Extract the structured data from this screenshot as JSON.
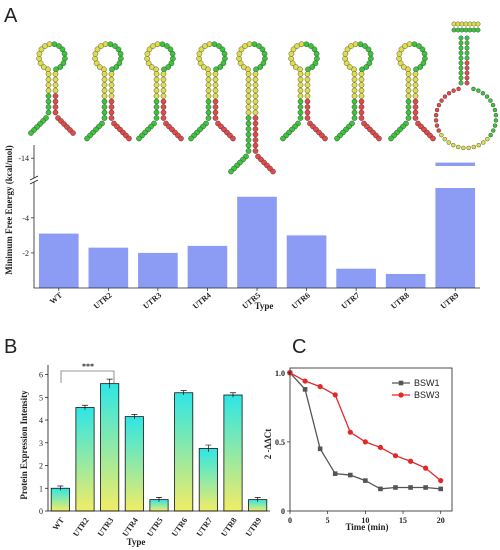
{
  "panel_a": {
    "letter": "A",
    "rna_structures": [
      {
        "label": "WT"
      },
      {
        "label": "UTR2"
      },
      {
        "label": "UTR3"
      },
      {
        "label": "UTR4"
      },
      {
        "label": "UTR5"
      },
      {
        "label": "UTR6"
      },
      {
        "label": "UTR7"
      },
      {
        "label": "UTR8"
      },
      {
        "label": "UTR9"
      }
    ]
  },
  "panel_b": {
    "letter": "B",
    "significance": "***"
  },
  "panel_c": {
    "letter": "C"
  },
  "colors": {
    "bar_a": "#8c9cf5",
    "bar_b_top": "#2ee6e6",
    "bar_b_bottom": "#f2ec66",
    "bsw1": "#555555",
    "bsw3": "#e22828",
    "rna_green": "#3cc43c",
    "rna_red": "#e24a4a",
    "rna_yellow": "#dede4a"
  },
  "chart_data": [
    {
      "id": "mfe",
      "type": "bar",
      "categories": [
        "WT",
        "UTR2",
        "UTR3",
        "UTR4",
        "UTR5",
        "UTR6",
        "UTR7",
        "UTR8",
        "UTR9"
      ],
      "values": [
        -3.1,
        -2.3,
        -2.0,
        -2.4,
        -5.2,
        -3.0,
        -1.1,
        -0.8,
        -13.8
      ],
      "ylabel": "Minimum Free Energy (kcal/mol)",
      "xlabel": "Type",
      "y_ticks": [
        -4,
        -2,
        -14
      ],
      "y_tick_labels": [
        "-4",
        "-2",
        "-14"
      ],
      "axis_break": true,
      "lower_range": [
        0,
        -5.7
      ],
      "upper_range": [
        -13.1,
        -14.6
      ]
    },
    {
      "id": "expression",
      "type": "bar",
      "categories": [
        "WT",
        "UTR2",
        "UTR3",
        "UTR4",
        "UTR5",
        "UTR6",
        "UTR7",
        "UTR8",
        "UTR9"
      ],
      "values": [
        1.0,
        4.55,
        5.6,
        4.15,
        0.5,
        5.2,
        2.75,
        5.1,
        0.5
      ],
      "errors": [
        0.1,
        0.1,
        0.2,
        0.1,
        0.1,
        0.1,
        0.15,
        0.1,
        0.1
      ],
      "ylabel": "Protein Expression Intensity",
      "xlabel": "Type",
      "ylim": [
        0,
        6.2
      ],
      "y_ticks": [
        0,
        1,
        2,
        3,
        4,
        5,
        6
      ]
    },
    {
      "id": "decay",
      "type": "line",
      "xlabel": "Time (min)",
      "ylabel": "2 -ΔΔCt",
      "xlim": [
        0,
        21.5
      ],
      "ylim": [
        0,
        1.02
      ],
      "x_ticks": [
        0,
        5,
        10,
        15,
        20
      ],
      "y_ticks": [
        0,
        0.5,
        1.0
      ],
      "y_tick_labels": [
        "0",
        "0.5",
        "1.0"
      ],
      "series": [
        {
          "name": "BSW1",
          "x": [
            0,
            2,
            4,
            6,
            8,
            10,
            12,
            14,
            16,
            18,
            20
          ],
          "y": [
            1.0,
            0.88,
            0.45,
            0.27,
            0.26,
            0.22,
            0.16,
            0.17,
            0.17,
            0.17,
            0.16
          ]
        },
        {
          "name": "BSW3",
          "x": [
            0,
            2,
            4,
            6,
            8,
            10,
            12,
            14,
            16,
            18,
            20
          ],
          "y": [
            1.0,
            0.94,
            0.9,
            0.84,
            0.57,
            0.5,
            0.46,
            0.4,
            0.36,
            0.31,
            0.22
          ]
        }
      ],
      "legend_position": "top-right"
    }
  ]
}
